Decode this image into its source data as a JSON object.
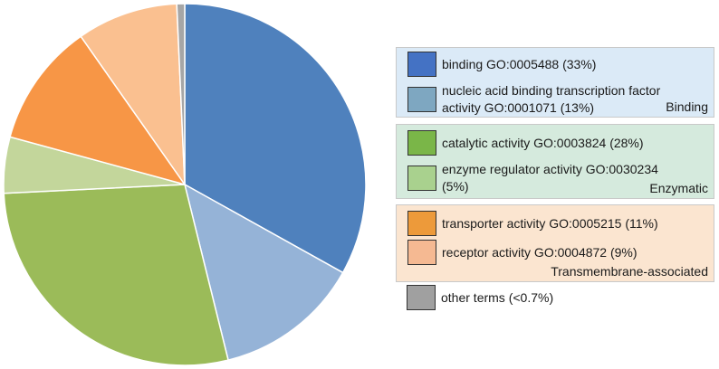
{
  "chart_data": {
    "type": "pie",
    "slices": [
      {
        "label": "binding GO:0005488 (33%)",
        "value": 33,
        "color": "#4f81bd"
      },
      {
        "label": "nucleic acid binding transcription factor activity GO:0001071 (13%)",
        "value": 13,
        "color": "#95b3d7"
      },
      {
        "label": "catalytic activity GO:0003824 (28%)",
        "value": 28,
        "color": "#9bbb59"
      },
      {
        "label": "enzyme regulator activity GO:0030234 (5%)",
        "value": 5,
        "color": "#c3d69b"
      },
      {
        "label": "transporter activity GO:0005215 (11%)",
        "value": 11,
        "color": "#f79646"
      },
      {
        "label": "receptor activity GO:0004872 (9%)",
        "value": 9,
        "color": "#fac090"
      },
      {
        "label": "other terms (<0.7%)",
        "value": 0.7,
        "color": "#a6a6a6"
      }
    ],
    "legend_position": "right"
  },
  "legend": {
    "groups": [
      {
        "name": "Binding",
        "background": "#dbeaf7",
        "items": [
          {
            "label": "binding GO:0005488 (33%)",
            "color": "#4472c4"
          },
          {
            "label": "nucleic acid binding transcription factor activity GO:0001071 (13%)",
            "color": "#7ea7c1"
          }
        ]
      },
      {
        "name": "Enzymatic",
        "background": "#d5eadd",
        "items": [
          {
            "label": "catalytic activity GO:0003824 (28%)",
            "color": "#7ab648"
          },
          {
            "label": "enzyme regulator activity GO:0030234 (5%)",
            "color": "#a9d18e"
          }
        ]
      },
      {
        "name": "Transmembrane-associated",
        "background": "#fbe5d0",
        "items": [
          {
            "label": "transporter activity GO:0005215 (11%)",
            "color": "#ed9a3a"
          },
          {
            "label": "receptor activity GO:0004872 (9%)",
            "color": "#f5b992"
          }
        ]
      }
    ],
    "other": {
      "label": "other terms (<0.7%)",
      "color": "#a0a0a0"
    }
  }
}
